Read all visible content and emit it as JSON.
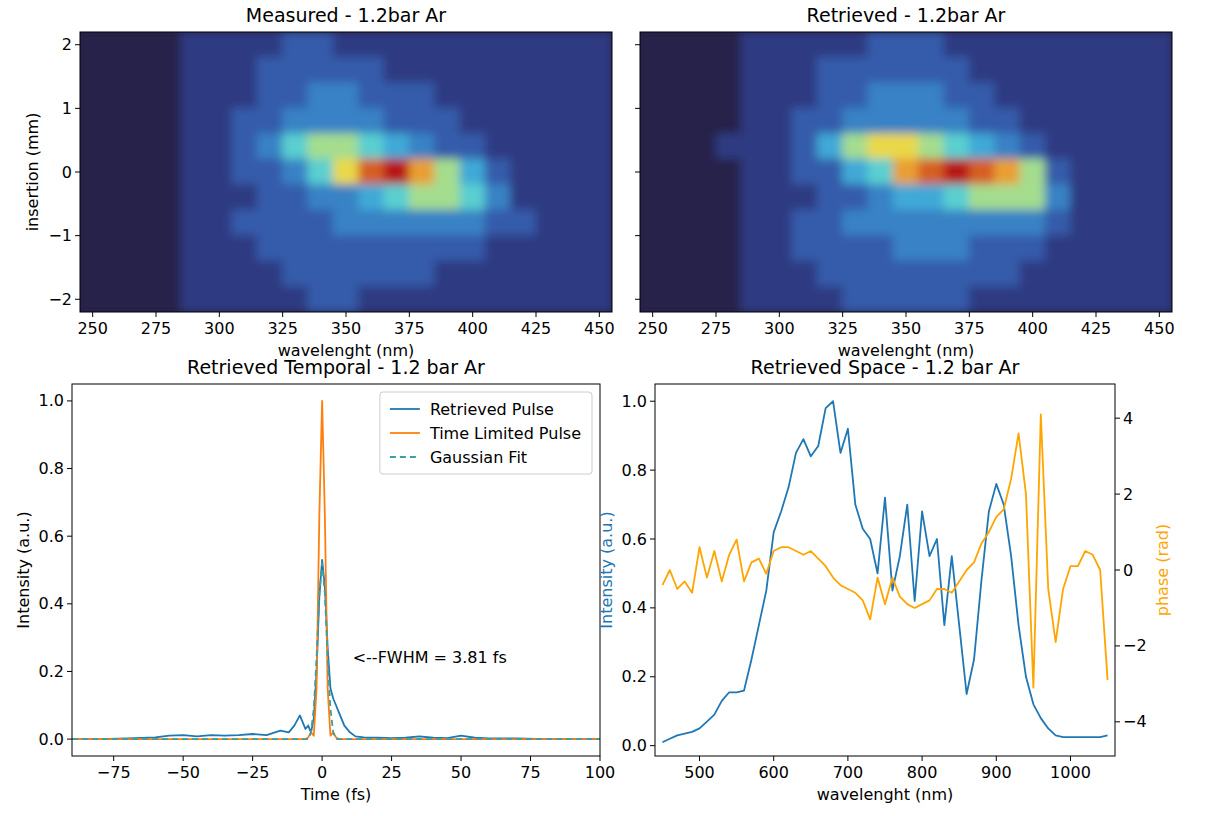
{
  "chart_data": [
    {
      "type": "heatmap",
      "title": "Measured - 1.2bar Ar",
      "x_label": "wavelenght (nm)",
      "y_label": "insertion (mm)",
      "xlim": [
        245,
        455
      ],
      "ylim": [
        -2.2,
        2.2
      ],
      "xticks": [
        250,
        275,
        300,
        325,
        350,
        375,
        400,
        425,
        450
      ],
      "yticks": [
        {
          "value": -2,
          "label": "−2"
        },
        {
          "value": -1,
          "label": "−1"
        },
        0,
        1,
        2
      ],
      "x": [
        250,
        260,
        270,
        280,
        290,
        300,
        310,
        320,
        330,
        340,
        350,
        360,
        370,
        380,
        390,
        400,
        410,
        420,
        430,
        440,
        450
      ],
      "y": [
        2.0,
        1.6,
        1.2,
        0.8,
        0.4,
        0.0,
        -0.4,
        -0.8,
        -1.2,
        -1.6,
        -2.0
      ],
      "cells": [
        [
          0,
          0,
          0,
          0,
          1,
          1,
          1,
          1,
          2,
          2,
          1,
          1,
          1,
          1,
          1,
          1,
          1,
          1,
          1,
          1,
          1
        ],
        [
          0,
          0,
          0,
          0,
          1,
          1,
          1,
          2,
          2,
          2,
          2,
          2,
          1,
          1,
          1,
          1,
          1,
          1,
          1,
          1,
          1
        ],
        [
          0,
          0,
          0,
          0,
          1,
          1,
          1,
          2,
          2,
          3,
          3,
          2,
          2,
          2,
          1,
          1,
          1,
          1,
          1,
          1,
          1
        ],
        [
          0,
          0,
          0,
          0,
          1,
          1,
          2,
          2,
          3,
          3,
          3,
          3,
          2,
          2,
          2,
          1,
          1,
          1,
          1,
          1,
          1
        ],
        [
          0,
          0,
          0,
          0,
          1,
          1,
          2,
          3,
          5,
          6,
          6,
          5,
          4,
          3,
          2,
          2,
          1,
          1,
          1,
          1,
          1
        ],
        [
          0,
          0,
          0,
          0,
          1,
          1,
          2,
          2,
          3,
          5,
          7,
          9,
          10,
          8,
          6,
          4,
          2,
          1,
          1,
          1,
          1
        ],
        [
          0,
          0,
          0,
          0,
          1,
          1,
          1,
          2,
          2,
          3,
          3,
          4,
          5,
          6,
          6,
          5,
          3,
          1,
          1,
          1,
          1
        ],
        [
          0,
          0,
          0,
          0,
          1,
          1,
          2,
          2,
          2,
          2,
          3,
          3,
          3,
          3,
          3,
          3,
          2,
          2,
          1,
          1,
          1
        ],
        [
          0,
          0,
          0,
          0,
          1,
          1,
          1,
          2,
          2,
          2,
          2,
          2,
          2,
          2,
          2,
          2,
          1,
          1,
          1,
          1,
          1
        ],
        [
          0,
          0,
          0,
          0,
          1,
          1,
          1,
          1,
          2,
          2,
          2,
          2,
          2,
          2,
          1,
          1,
          1,
          1,
          1,
          1,
          1
        ],
        [
          0,
          0,
          0,
          0,
          1,
          1,
          1,
          1,
          1,
          2,
          2,
          1,
          1,
          1,
          1,
          1,
          1,
          1,
          1,
          1,
          1
        ]
      ]
    },
    {
      "type": "heatmap",
      "title": "Retrieved - 1.2bar Ar",
      "x_label": "wavelenght (nm)",
      "tick_labels": "x",
      "xlim": [
        245,
        455
      ],
      "ylim": [
        -2.2,
        2.2
      ],
      "xticks": [
        250,
        275,
        300,
        325,
        350,
        375,
        400,
        425,
        450
      ],
      "yticks": [
        -2,
        -1,
        0,
        1,
        2
      ],
      "x": [
        250,
        260,
        270,
        280,
        290,
        300,
        310,
        320,
        330,
        340,
        350,
        360,
        370,
        380,
        390,
        400,
        410,
        420,
        430,
        440,
        450
      ],
      "y": [
        2.0,
        1.6,
        1.2,
        0.8,
        0.4,
        0.0,
        -0.4,
        -0.8,
        -1.2,
        -1.6,
        -2.0
      ],
      "cells": [
        [
          0,
          0,
          0,
          0,
          1,
          1,
          1,
          1,
          1,
          2,
          2,
          2,
          1,
          1,
          1,
          1,
          1,
          1,
          1,
          1,
          1
        ],
        [
          0,
          0,
          0,
          0,
          1,
          1,
          1,
          2,
          2,
          2,
          2,
          2,
          2,
          1,
          1,
          1,
          1,
          1,
          1,
          1,
          1
        ],
        [
          0,
          0,
          0,
          0,
          1,
          1,
          1,
          2,
          2,
          3,
          3,
          3,
          2,
          2,
          1,
          1,
          1,
          1,
          1,
          1,
          1
        ],
        [
          0,
          0,
          0,
          0,
          1,
          1,
          2,
          2,
          3,
          3,
          3,
          3,
          3,
          2,
          2,
          1,
          1,
          1,
          1,
          1,
          1
        ],
        [
          0,
          0,
          0,
          1,
          1,
          1,
          2,
          4,
          6,
          7,
          7,
          6,
          5,
          4,
          3,
          2,
          1,
          1,
          1,
          1,
          1
        ],
        [
          0,
          0,
          0,
          0,
          1,
          1,
          2,
          2,
          4,
          5,
          8,
          9,
          10,
          9,
          8,
          6,
          2,
          1,
          1,
          1,
          1
        ],
        [
          0,
          0,
          0,
          0,
          1,
          1,
          1,
          2,
          2,
          3,
          4,
          4,
          5,
          6,
          6,
          6,
          3,
          1,
          1,
          1,
          1
        ],
        [
          0,
          0,
          0,
          0,
          1,
          1,
          2,
          2,
          3,
          3,
          3,
          3,
          3,
          3,
          3,
          3,
          2,
          1,
          1,
          1,
          1
        ],
        [
          0,
          0,
          0,
          0,
          1,
          1,
          2,
          2,
          2,
          2,
          3,
          3,
          3,
          2,
          2,
          2,
          1,
          1,
          1,
          1,
          1
        ],
        [
          0,
          0,
          0,
          0,
          1,
          1,
          1,
          2,
          2,
          2,
          2,
          2,
          2,
          2,
          2,
          1,
          1,
          1,
          1,
          1,
          1
        ],
        [
          0,
          0,
          0,
          0,
          1,
          1,
          1,
          1,
          2,
          2,
          2,
          2,
          2,
          1,
          1,
          1,
          1,
          1,
          1,
          1,
          1
        ]
      ]
    },
    {
      "type": "line",
      "title": "Retrieved Temporal - 1.2 bar Ar",
      "x_label": "Time (fs)",
      "y_label": "Intensity (a.u.)",
      "xlim": [
        -90,
        100
      ],
      "ylim": [
        -0.05,
        1.05
      ],
      "xticks": [
        {
          "value": -75,
          "label": "−75"
        },
        {
          "value": -50,
          "label": "−50"
        },
        {
          "value": -25,
          "label": "−25"
        },
        0,
        25,
        50,
        75,
        100
      ],
      "yticks": [
        {
          "value": 0,
          "label": "0.0"
        },
        0.2,
        0.4,
        0.6,
        0.8,
        {
          "value": 1,
          "label": "1.0"
        }
      ],
      "legend": "upper right",
      "x": [
        -90,
        -80,
        -70,
        -60,
        -55,
        -50,
        -45,
        -40,
        -35,
        -30,
        -25,
        -20,
        -15,
        -12,
        -10,
        -8,
        -6,
        -5,
        -4,
        -3,
        -2,
        -1,
        0,
        1,
        2,
        3,
        4,
        5,
        6,
        8,
        10,
        12,
        15,
        20,
        25,
        30,
        35,
        40,
        45,
        50,
        55,
        60,
        70,
        80,
        90,
        100
      ],
      "series": [
        {
          "name": "Retrieved Pulse",
          "color": "#1f77b4",
          "line_style": "solid",
          "values": [
            0,
            0,
            0.002,
            0.005,
            0.01,
            0.012,
            0.008,
            0.012,
            0.01,
            0.012,
            0.015,
            0.012,
            0.025,
            0.02,
            0.04,
            0.07,
            0.03,
            0.04,
            0.02,
            0.06,
            0.2,
            0.42,
            0.53,
            0.45,
            0.27,
            0.15,
            0.12,
            0.1,
            0.08,
            0.04,
            0.02,
            0.008,
            0.005,
            0.004,
            0.003,
            0.004,
            0.008,
            0.004,
            0.003,
            0.01,
            0.004,
            0.002,
            0.002,
            0,
            0,
            0
          ]
        },
        {
          "name": "Time Limited Pulse",
          "color": "#ff7f0e",
          "line_style": "solid",
          "values": [
            0,
            0,
            0,
            0,
            0,
            0,
            0,
            0,
            0,
            0,
            0,
            0,
            0,
            0,
            0,
            0,
            0,
            0.005,
            0.02,
            0.01,
            0.15,
            0.66,
            1.0,
            0.66,
            0.15,
            0.01,
            0.02,
            0.005,
            0,
            0,
            0,
            0,
            0,
            0,
            0,
            0,
            0,
            0,
            0,
            0,
            0,
            0,
            0,
            0,
            0,
            0
          ]
        },
        {
          "name": "Gaussian Fit",
          "color": "#3a9fa3",
          "line_style": "dashed",
          "values": [
            0,
            0,
            0,
            0,
            0,
            0,
            0,
            0,
            0,
            0,
            0,
            0,
            0,
            0,
            0,
            0,
            0,
            0,
            0.02,
            0.09,
            0.24,
            0.43,
            0.52,
            0.43,
            0.24,
            0.09,
            0.02,
            0,
            0,
            0,
            0,
            0,
            0,
            0,
            0,
            0,
            0,
            0,
            0,
            0,
            0,
            0,
            0,
            0,
            0,
            0
          ]
        }
      ],
      "annotations": [
        {
          "text": "<--FWHM = 3.81 fs",
          "x": 11,
          "y": 0.24
        }
      ]
    },
    {
      "type": "line",
      "title": "Retrieved Space - 1.2 bar Ar",
      "x_label": "wavelenght (nm)",
      "y_label": "Intensity (a.u.)",
      "y2_label": "phase (rad)",
      "xlim": [
        440,
        1060
      ],
      "ylim": [
        -0.03,
        1.05
      ],
      "y2lim": [
        -4.9,
        4.9
      ],
      "xticks": [
        500,
        600,
        700,
        800,
        900,
        1000
      ],
      "yticks": [
        {
          "value": 0,
          "label": "0.0"
        },
        0.2,
        0.4,
        0.6,
        0.8,
        {
          "value": 1,
          "label": "1.0"
        }
      ],
      "y2ticks": [
        {
          "value": -4,
          "label": "−4"
        },
        {
          "value": -2,
          "label": "−2"
        },
        0,
        2,
        4
      ],
      "x": [
        450,
        460,
        470,
        480,
        490,
        500,
        510,
        520,
        530,
        540,
        550,
        560,
        570,
        580,
        590,
        600,
        610,
        620,
        630,
        640,
        650,
        660,
        670,
        680,
        690,
        700,
        710,
        720,
        730,
        740,
        750,
        760,
        770,
        780,
        790,
        800,
        810,
        820,
        830,
        840,
        850,
        860,
        870,
        880,
        890,
        900,
        910,
        920,
        930,
        940,
        950,
        960,
        970,
        980,
        990,
        1000,
        1010,
        1020,
        1030,
        1040,
        1050
      ],
      "series": [
        {
          "color": "#1f77b4",
          "line_style": "solid",
          "values": [
            0.01,
            0.02,
            0.03,
            0.035,
            0.04,
            0.05,
            0.07,
            0.09,
            0.13,
            0.155,
            0.155,
            0.16,
            0.25,
            0.35,
            0.45,
            0.62,
            0.68,
            0.75,
            0.85,
            0.89,
            0.84,
            0.87,
            0.98,
            1.0,
            0.85,
            0.92,
            0.7,
            0.63,
            0.6,
            0.5,
            0.72,
            0.45,
            0.55,
            0.7,
            0.42,
            0.68,
            0.55,
            0.6,
            0.35,
            0.55,
            0.35,
            0.15,
            0.25,
            0.48,
            0.68,
            0.76,
            0.7,
            0.55,
            0.35,
            0.2,
            0.12,
            0.08,
            0.05,
            0.03,
            0.025,
            0.025,
            0.025,
            0.025,
            0.025,
            0.025,
            0.03
          ]
        },
        {
          "color": "#ffa500",
          "line_style": "solid",
          "axis": "y2",
          "values": [
            -0.4,
            0,
            -0.5,
            -0.3,
            -0.6,
            0.6,
            -0.2,
            0.5,
            -0.3,
            0.4,
            0.8,
            -0.3,
            0.2,
            0.3,
            -0.1,
            0.5,
            0.6,
            0.6,
            0.5,
            0.4,
            0.5,
            0.3,
            0.1,
            -0.2,
            -0.4,
            -0.5,
            -0.6,
            -0.8,
            -1.3,
            -0.2,
            -0.9,
            -0.2,
            -0.7,
            -0.9,
            -1.0,
            -0.9,
            -0.8,
            -0.5,
            -0.5,
            -0.6,
            -0.3,
            0.0,
            0.2,
            0.7,
            1.0,
            1.4,
            1.6,
            2.4,
            3.6,
            2.0,
            -3.1,
            4.1,
            -0.5,
            -1.9,
            -0.5,
            0.1,
            0.1,
            0.5,
            0.4,
            0.0,
            -2.9
          ]
        }
      ]
    }
  ]
}
